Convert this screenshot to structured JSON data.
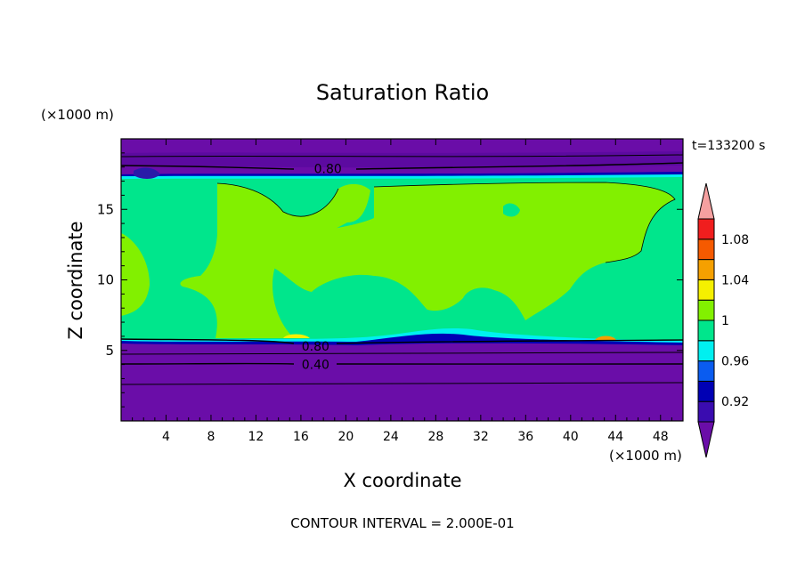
{
  "chart_data": {
    "type": "heatmap",
    "title": "Saturation Ratio",
    "xlabel": "X coordinate",
    "ylabel": "Z coordinate",
    "x_unit": "(×1000 m)",
    "y_unit": "(×1000 m)",
    "time_label": "t=133200 s",
    "footer": "CONTOUR INTERVAL = 2.000E-01",
    "xlim": [
      0,
      50
    ],
    "ylim": [
      0,
      20
    ],
    "x_ticks": [
      4,
      8,
      12,
      16,
      20,
      24,
      28,
      32,
      36,
      40,
      44,
      48
    ],
    "y_ticks": [
      5,
      10,
      15
    ],
    "colorbar": {
      "levels": [
        "0.92",
        "0.96",
        "1",
        "1.04",
        "1.08"
      ],
      "colors": [
        "#6a0da8",
        "#3a0cb0",
        "#0000b4",
        "#0a5cf0",
        "#00f0f0",
        "#00e68c",
        "#82f000",
        "#f5f000",
        "#f5a000",
        "#f55a00",
        "#f01e1e",
        "#f5a0a0"
      ]
    },
    "contour_labels": [
      {
        "text": "0.80",
        "x": 18.4,
        "z": 17.9
      },
      {
        "text": "0.80",
        "x": 17.3,
        "z": 5.3
      },
      {
        "text": "0.40",
        "x": 17.3,
        "z": 4.0
      }
    ]
  }
}
